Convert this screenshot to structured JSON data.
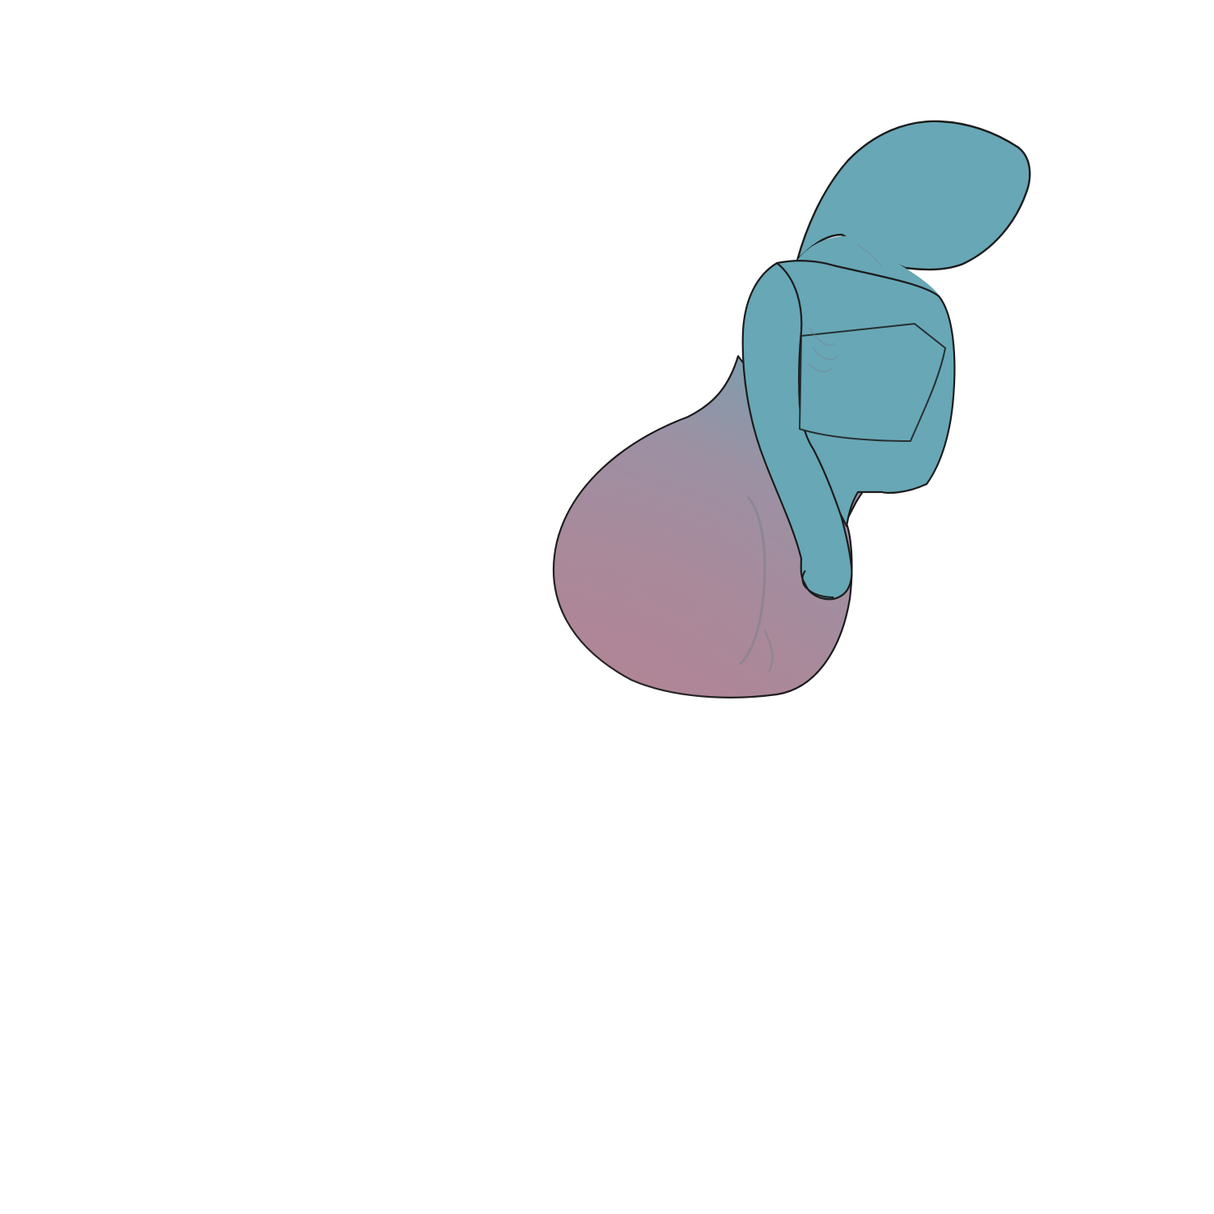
{
  "colors": {
    "background": "#ffffff",
    "figure_top": "#67a7b6",
    "figure_mid": "#9c91a3",
    "figure_bottom": "#b08596",
    "outline": "#1b1b1b",
    "shading": "#7a7f8c"
  },
  "illustration": {
    "subject": "figure-drawing",
    "style": "hand-drawn sketch"
  }
}
